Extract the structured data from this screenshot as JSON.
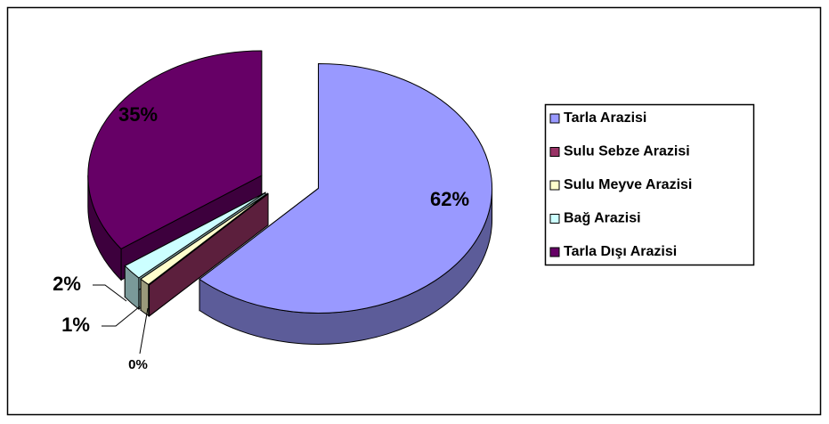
{
  "chart_data": {
    "type": "pie",
    "categories": [
      "Tarla Arazisi",
      "Sulu Sebze Arazisi",
      "Sulu Meyve Arazisi",
      "Bağ Arazisi",
      "Tarla Dışı Arazisi"
    ],
    "values": [
      62,
      0,
      1,
      2,
      35
    ],
    "value_labels": [
      "62%",
      "0%",
      "1%",
      "2%",
      "35%"
    ],
    "colors": [
      "#9999ff",
      "#993366",
      "#ffffcc",
      "#ccffff",
      "#660066"
    ],
    "legend": "right"
  }
}
